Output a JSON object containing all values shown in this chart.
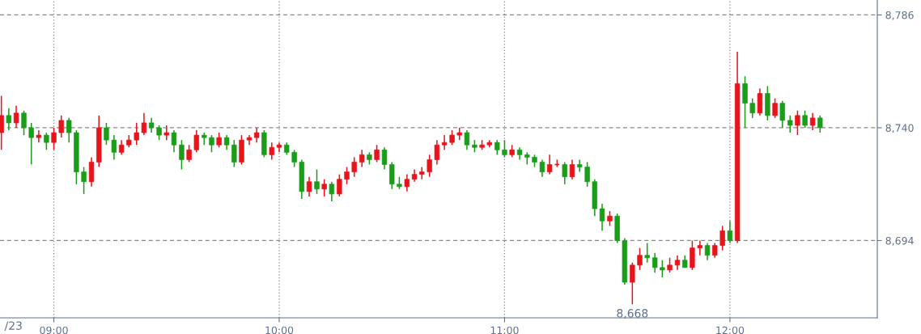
{
  "chart_data": {
    "type": "candlestick",
    "x": [
      8.767,
      8.8,
      8.833,
      8.867,
      8.9,
      8.933,
      8.967,
      9.0,
      9.033,
      9.067,
      9.1,
      9.133,
      9.167,
      9.2,
      9.233,
      9.267,
      9.3,
      9.333,
      9.367,
      9.4,
      9.433,
      9.467,
      9.5,
      9.533,
      9.567,
      9.6,
      9.633,
      9.667,
      9.7,
      9.733,
      9.767,
      9.8,
      9.833,
      9.867,
      9.9,
      9.933,
      9.967,
      10.0,
      10.033,
      10.067,
      10.1,
      10.133,
      10.167,
      10.2,
      10.233,
      10.267,
      10.3,
      10.333,
      10.367,
      10.4,
      10.433,
      10.467,
      10.5,
      10.533,
      10.567,
      10.6,
      10.633,
      10.667,
      10.7,
      10.733,
      10.767,
      10.8,
      10.833,
      10.867,
      10.9,
      10.933,
      10.967,
      11.0,
      11.033,
      11.067,
      11.1,
      11.133,
      11.167,
      11.2,
      11.233,
      11.267,
      11.3,
      11.333,
      11.367,
      11.4,
      11.433,
      11.467,
      11.5,
      11.533,
      11.567,
      11.6,
      11.633,
      11.667,
      11.7,
      11.733,
      11.767,
      11.8,
      11.833,
      11.867,
      11.9,
      11.933,
      11.967,
      12.0,
      12.033,
      12.067,
      12.1,
      12.133,
      12.167,
      12.2,
      12.233,
      12.267,
      12.3,
      12.333,
      12.367,
      12.4
    ],
    "ohlc": [
      [
        8738,
        8753,
        8731,
        8745
      ],
      [
        8745,
        8748,
        8739,
        8742
      ],
      [
        8742,
        8749,
        8740,
        8746
      ],
      [
        8746,
        8747,
        8737,
        8740
      ],
      [
        8740,
        8742,
        8725,
        8736
      ],
      [
        8736,
        8739,
        8734,
        8737
      ],
      [
        8737,
        8738,
        8731,
        8734
      ],
      [
        8734,
        8740,
        8731,
        8738
      ],
      [
        8738,
        8745,
        8736,
        8743
      ],
      [
        8743,
        8744,
        8734,
        8738
      ],
      [
        8738,
        8739,
        8717,
        8722
      ],
      [
        8722,
        8724,
        8713,
        8718
      ],
      [
        8718,
        8728,
        8716,
        8726
      ],
      [
        8726,
        8745,
        8724,
        8740
      ],
      [
        8740,
        8742,
        8733,
        8735
      ],
      [
        8735,
        8737,
        8727,
        8730
      ],
      [
        8730,
        8735,
        8729,
        8733
      ],
      [
        8733,
        8737,
        8732,
        8735
      ],
      [
        8735,
        8742,
        8733,
        8738
      ],
      [
        8738,
        8746,
        8737,
        8742
      ],
      [
        8742,
        8744,
        8738,
        8740
      ],
      [
        8740,
        8741,
        8735,
        8737
      ],
      [
        8737,
        8741,
        8735,
        8738
      ],
      [
        8738,
        8739,
        8730,
        8733
      ],
      [
        8733,
        8735,
        8723,
        8727
      ],
      [
        8727,
        8733,
        8726,
        8731
      ],
      [
        8731,
        8739,
        8730,
        8737
      ],
      [
        8737,
        8738,
        8733,
        8736
      ],
      [
        8736,
        8737,
        8730,
        8733
      ],
      [
        8733,
        8738,
        8732,
        8736
      ],
      [
        8736,
        8737,
        8731,
        8733
      ],
      [
        8733,
        8735,
        8724,
        8726
      ],
      [
        8726,
        8737,
        8725,
        8735
      ],
      [
        8735,
        8737,
        8733,
        8736
      ],
      [
        8736,
        8740,
        8734,
        8738
      ],
      [
        8738,
        8739,
        8728,
        8729
      ],
      [
        8729,
        8734,
        8727,
        8732
      ],
      [
        8732,
        8734,
        8730,
        8733
      ],
      [
        8733,
        8734,
        8729,
        8730
      ],
      [
        8730,
        8731,
        8724,
        8726
      ],
      [
        8726,
        8727,
        8711,
        8714
      ],
      [
        8714,
        8720,
        8712,
        8718
      ],
      [
        8718,
        8723,
        8713,
        8715
      ],
      [
        8715,
        8719,
        8712,
        8717
      ],
      [
        8717,
        8718,
        8710,
        8713
      ],
      [
        8713,
        8721,
        8712,
        8719
      ],
      [
        8719,
        8724,
        8717,
        8722
      ],
      [
        8722,
        8728,
        8720,
        8726
      ],
      [
        8726,
        8731,
        8724,
        8729
      ],
      [
        8729,
        8730,
        8725,
        8727
      ],
      [
        8727,
        8733,
        8726,
        8731
      ],
      [
        8731,
        8732,
        8723,
        8725
      ],
      [
        8725,
        8726,
        8715,
        8717
      ],
      [
        8717,
        8720,
        8715,
        8716
      ],
      [
        8716,
        8721,
        8714,
        8719
      ],
      [
        8719,
        8723,
        8718,
        8721
      ],
      [
        8721,
        8724,
        8719,
        8722
      ],
      [
        8722,
        8729,
        8720,
        8727
      ],
      [
        8727,
        8735,
        8725,
        8733
      ],
      [
        8733,
        8737,
        8731,
        8734
      ],
      [
        8734,
        8739,
        8733,
        8737
      ],
      [
        8737,
        8740,
        8735,
        8738
      ],
      [
        8738,
        8739,
        8731,
        8733
      ],
      [
        8733,
        8735,
        8730,
        8732
      ],
      [
        8732,
        8735,
        8731,
        8733
      ],
      [
        8733,
        8735,
        8732,
        8734
      ],
      [
        8734,
        8735,
        8729,
        8731
      ],
      [
        8731,
        8735,
        8728,
        8729
      ],
      [
        8729,
        8733,
        8728,
        8731
      ],
      [
        8731,
        8732,
        8727,
        8729
      ],
      [
        8729,
        8730,
        8725,
        8728
      ],
      [
        8728,
        8729,
        8724,
        8726
      ],
      [
        8726,
        8727,
        8720,
        8722
      ],
      [
        8722,
        8729,
        8721,
        8725
      ],
      [
        8725,
        8727,
        8724,
        8725
      ],
      [
        8725,
        8726,
        8717,
        8720
      ],
      [
        8720,
        8727,
        8719,
        8725
      ],
      [
        8725,
        8727,
        8722,
        8724
      ],
      [
        8724,
        8726,
        8716,
        8718
      ],
      [
        8718,
        8719,
        8704,
        8707
      ],
      [
        8707,
        8709,
        8698,
        8702
      ],
      [
        8702,
        8706,
        8700,
        8704
      ],
      [
        8704,
        8705,
        8693,
        8694
      ],
      [
        8694,
        8695,
        8676,
        8677
      ],
      [
        8677,
        8685,
        8668,
        8684
      ],
      [
        8684,
        8691,
        8682,
        8688
      ],
      [
        8688,
        8693,
        8685,
        8687
      ],
      [
        8687,
        8689,
        8681,
        8683
      ],
      [
        8683,
        8686,
        8679,
        8682
      ],
      [
        8682,
        8687,
        8681,
        8684
      ],
      [
        8684,
        8688,
        8682,
        8686
      ],
      [
        8686,
        8688,
        8683,
        8683
      ],
      [
        8683,
        8694,
        8682,
        8691
      ],
      [
        8691,
        8694,
        8688,
        8692
      ],
      [
        8692,
        8693,
        8686,
        8688
      ],
      [
        8688,
        8693,
        8687,
        8692
      ],
      [
        8692,
        8700,
        8690,
        8698
      ],
      [
        8698,
        8702,
        8693,
        8694
      ],
      [
        8694,
        8771,
        8693,
        8758
      ],
      [
        8758,
        8761,
        8740,
        8750
      ],
      [
        8750,
        8752,
        8744,
        8746
      ],
      [
        8746,
        8756,
        8745,
        8754
      ],
      [
        8754,
        8757,
        8743,
        8745
      ],
      [
        8745,
        8752,
        8744,
        8750
      ],
      [
        8750,
        8751,
        8740,
        8743
      ],
      [
        8743,
        8745,
        8738,
        8741
      ],
      [
        8741,
        8747,
        8737,
        8745
      ],
      [
        8745,
        8747,
        8740,
        8741
      ],
      [
        8741,
        8746,
        8739,
        8744
      ],
      [
        8744,
        8745,
        8738,
        8740
      ]
    ],
    "colors": [
      "#e8141c",
      "#1a9e1a",
      "#e8141c",
      "#1a9e1a",
      "#1a9e1a",
      "#e8141c",
      "#1a9e1a",
      "#e8141c",
      "#e8141c",
      "#1a9e1a",
      "#1a9e1a",
      "#1a9e1a",
      "#e8141c",
      "#e8141c",
      "#1a9e1a",
      "#1a9e1a",
      "#e8141c",
      "#e8141c",
      "#e8141c",
      "#e8141c",
      "#1a9e1a",
      "#1a9e1a",
      "#e8141c",
      "#1a9e1a",
      "#1a9e1a",
      "#e8141c",
      "#e8141c",
      "#1a9e1a",
      "#1a9e1a",
      "#e8141c",
      "#1a9e1a",
      "#1a9e1a",
      "#e8141c",
      "#e8141c",
      "#e8141c",
      "#1a9e1a",
      "#e8141c",
      "#e8141c",
      "#1a9e1a",
      "#1a9e1a",
      "#1a9e1a",
      "#e8141c",
      "#1a9e1a",
      "#e8141c",
      "#1a9e1a",
      "#e8141c",
      "#e8141c",
      "#e8141c",
      "#e8141c",
      "#1a9e1a",
      "#e8141c",
      "#1a9e1a",
      "#1a9e1a",
      "#1a9e1a",
      "#e8141c",
      "#e8141c",
      "#e8141c",
      "#e8141c",
      "#e8141c",
      "#e8141c",
      "#e8141c",
      "#e8141c",
      "#1a9e1a",
      "#1a9e1a",
      "#e8141c",
      "#e8141c",
      "#1a9e1a",
      "#1a9e1a",
      "#e8141c",
      "#1a9e1a",
      "#1a9e1a",
      "#1a9e1a",
      "#1a9e1a",
      "#e8141c",
      "#e8141c",
      "#1a9e1a",
      "#e8141c",
      "#1a9e1a",
      "#1a9e1a",
      "#1a9e1a",
      "#1a9e1a",
      "#e8141c",
      "#1a9e1a",
      "#1a9e1a",
      "#e8141c",
      "#e8141c",
      "#1a9e1a",
      "#1a9e1a",
      "#1a9e1a",
      "#e8141c",
      "#e8141c",
      "#1a9e1a",
      "#e8141c",
      "#e8141c",
      "#1a9e1a",
      "#e8141c",
      "#e8141c",
      "#1a9e1a",
      "#e8141c",
      "#1a9e1a",
      "#1a9e1a",
      "#e8141c",
      "#1a9e1a",
      "#e8141c",
      "#1a9e1a",
      "#1a9e1a",
      "#e8141c",
      "#1a9e1a",
      "#e8141c",
      "#1a9e1a"
    ],
    "xlim": [
      8.761,
      12.654
    ],
    "xticks": [
      {
        "value": 9,
        "label": "09:00"
      },
      {
        "value": 10,
        "label": "10:00"
      },
      {
        "value": 11,
        "label": "11:00"
      },
      {
        "value": 12,
        "label": "12:00"
      }
    ],
    "ylim": [
      8662.5,
      8792.1
    ],
    "yticks": [
      {
        "value": 8694,
        "label": "8,694"
      },
      {
        "value": 8740,
        "label": "8,740"
      },
      {
        "value": 8786,
        "label": "8,786"
      }
    ],
    "grid": true,
    "annotations": [
      {
        "text": "8,668",
        "x": 11.567,
        "y": 8668
      },
      "/23"
    ]
  }
}
